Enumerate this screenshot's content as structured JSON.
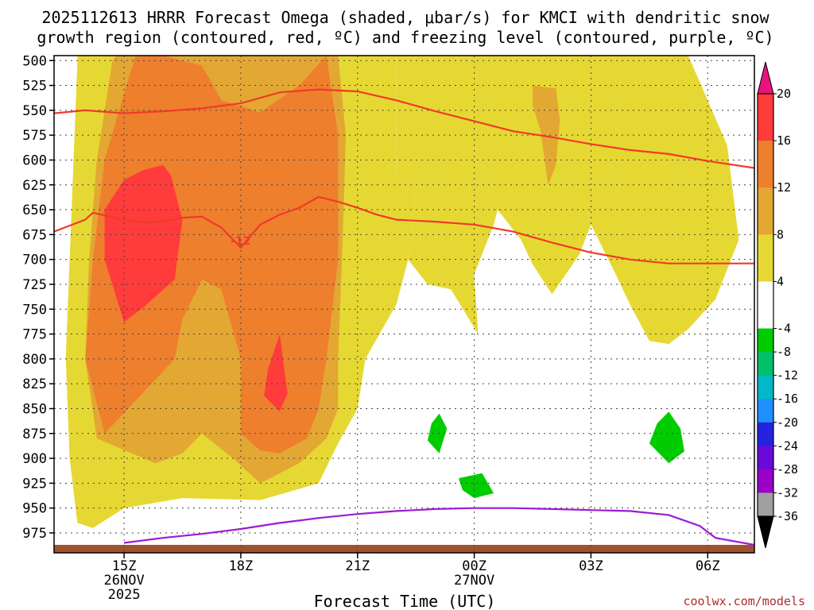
{
  "chart_data": {
    "type": "contour-time-height",
    "title_line1": "2025112613 HRRR Forecast Omega (shaded, μbar/s) for KMCI with dendritic snow",
    "title_line2": "growth region (contoured, red, ºC) and freezing level (contoured, purple, ºC)",
    "xlabel": "Forecast Time (UTC)",
    "credit": "coolwx.com/models",
    "x_range_hours": [
      13.2,
      31.2
    ],
    "y_range_mb": [
      495,
      995
    ],
    "y_ticks": [
      500,
      525,
      550,
      575,
      600,
      625,
      650,
      675,
      700,
      725,
      750,
      775,
      800,
      825,
      850,
      875,
      900,
      925,
      950,
      975
    ],
    "x_ticks": [
      {
        "hour": 15,
        "label": "15Z",
        "date": "26NOV",
        "year": "2025"
      },
      {
        "hour": 18,
        "label": "18Z",
        "date": "",
        "year": ""
      },
      {
        "hour": 21,
        "label": "21Z",
        "date": "",
        "year": ""
      },
      {
        "hour": 24,
        "label": "00Z",
        "date": "27NOV",
        "year": ""
      },
      {
        "hour": 27,
        "label": "03Z",
        "date": "",
        "year": ""
      },
      {
        "hour": 30,
        "label": "06Z",
        "date": "",
        "year": ""
      }
    ],
    "colorbar": {
      "labels": [
        "20",
        "16",
        "12",
        "8",
        "4",
        "-4",
        "-8",
        "-12",
        "-16",
        "-20",
        "-24",
        "-28",
        "-32",
        "-36"
      ],
      "bins": [
        {
          "color": "#ff3b3b"
        },
        {
          "color": "#ff3b3b"
        },
        {
          "color": "#ee7f2d"
        },
        {
          "color": "#ee7f2d"
        },
        {
          "color": "#e3a733"
        },
        {
          "color": "#e3a733"
        },
        {
          "color": "#e6d832"
        },
        {
          "color": "#e6d832"
        },
        {
          "color": "#ffffff"
        },
        {
          "color": "#ffffff"
        },
        {
          "color": "#00cc00"
        },
        {
          "color": "#00c06a"
        },
        {
          "color": "#00b8c8"
        },
        {
          "color": "#1e90ff"
        },
        {
          "color": "#2424e0"
        },
        {
          "color": "#6a0ad8"
        },
        {
          "color": "#9b00c8"
        },
        {
          "color": "#a0a0a0"
        }
      ],
      "top_arrow_color": "#e8137e",
      "bottom_arrow_color": "#000000"
    },
    "omega_regions": [
      {
        "level": 4,
        "color": "#e6d832",
        "points": [
          [
            13.8,
            495
          ],
          [
            22,
            495
          ],
          [
            22,
            615
          ],
          [
            22.5,
            630
          ],
          [
            22.3,
            700
          ],
          [
            22,
            745
          ],
          [
            21.2,
            800
          ],
          [
            21,
            850
          ],
          [
            20.5,
            885
          ],
          [
            20,
            925
          ],
          [
            18.5,
            942
          ],
          [
            16.5,
            940
          ],
          [
            15,
            950
          ],
          [
            14.2,
            970
          ],
          [
            13.8,
            965
          ],
          [
            13.6,
            900
          ],
          [
            13.5,
            800
          ],
          [
            13.6,
            700
          ],
          [
            13.7,
            600
          ],
          [
            13.8,
            500
          ]
        ]
      },
      {
        "level": 4,
        "color": "#e6d832",
        "points": [
          [
            22,
            495
          ],
          [
            29.5,
            495
          ],
          [
            30.5,
            585
          ],
          [
            30.8,
            680
          ],
          [
            30.2,
            740
          ],
          [
            29.5,
            770
          ],
          [
            29,
            785
          ],
          [
            28.5,
            782
          ],
          [
            28,
            745
          ],
          [
            27.6,
            712
          ],
          [
            27,
            665
          ],
          [
            26.7,
            695
          ],
          [
            26,
            735
          ],
          [
            25.5,
            705
          ],
          [
            25.2,
            680
          ],
          [
            24.6,
            650
          ],
          [
            24.5,
            665
          ],
          [
            24,
            715
          ],
          [
            24.1,
            775
          ],
          [
            23.4,
            730
          ],
          [
            22.8,
            725
          ],
          [
            22.3,
            700
          ],
          [
            22.5,
            630
          ],
          [
            22,
            615
          ],
          [
            22,
            495
          ]
        ]
      },
      {
        "level": 8,
        "color": "#e3a733",
        "points": [
          [
            14.8,
            495
          ],
          [
            20.5,
            495
          ],
          [
            20.7,
            575
          ],
          [
            20.6,
            700
          ],
          [
            20.5,
            800
          ],
          [
            20.5,
            850
          ],
          [
            20.2,
            880
          ],
          [
            19.5,
            905
          ],
          [
            18.5,
            925
          ],
          [
            17.8,
            900
          ],
          [
            17,
            875
          ],
          [
            16.5,
            895
          ],
          [
            15.8,
            905
          ],
          [
            14.3,
            880
          ],
          [
            14,
            800
          ],
          [
            14.1,
            700
          ],
          [
            14.3,
            600
          ],
          [
            14.7,
            500
          ]
        ]
      },
      {
        "level": 8,
        "color": "#e3a733",
        "points": [
          [
            25.5,
            525
          ],
          [
            26.1,
            528
          ],
          [
            26.2,
            560
          ],
          [
            26.1,
            605
          ],
          [
            25.9,
            625
          ],
          [
            25.7,
            570
          ],
          [
            25.5,
            545
          ]
        ]
      },
      {
        "level": 12,
        "color": "#ee7f2d",
        "points": [
          [
            15.3,
            495
          ],
          [
            16,
            495
          ],
          [
            17,
            505
          ],
          [
            17.5,
            540
          ],
          [
            18.5,
            552
          ],
          [
            19.5,
            525
          ],
          [
            20.2,
            495
          ],
          [
            20.5,
            575
          ],
          [
            20.5,
            700
          ],
          [
            20.2,
            800
          ],
          [
            20,
            850
          ],
          [
            19.7,
            880
          ],
          [
            19,
            895
          ],
          [
            18.5,
            892
          ],
          [
            18,
            875
          ],
          [
            18,
            800
          ],
          [
            17.5,
            730
          ],
          [
            17,
            720
          ],
          [
            16.5,
            760
          ],
          [
            16.3,
            800
          ],
          [
            15.7,
            825
          ],
          [
            14.5,
            875
          ],
          [
            14,
            800
          ],
          [
            14.2,
            700
          ],
          [
            14.5,
            600
          ],
          [
            15.1,
            520
          ]
        ]
      },
      {
        "level": 16,
        "color": "#ff3b3b",
        "points": [
          [
            15.5,
            610
          ],
          [
            16,
            605
          ],
          [
            16.2,
            615
          ],
          [
            16.5,
            660
          ],
          [
            16.3,
            720
          ],
          [
            15.5,
            748
          ],
          [
            15,
            763
          ],
          [
            14.5,
            700
          ],
          [
            14.5,
            650
          ],
          [
            15,
            620
          ]
        ]
      },
      {
        "level": 16,
        "color": "#ff3b3b",
        "points": [
          [
            19,
            775
          ],
          [
            19.2,
            835
          ],
          [
            19,
            853
          ],
          [
            18.6,
            837
          ],
          [
            18.7,
            810
          ]
        ]
      },
      {
        "level": -4,
        "color": "#00cc00",
        "points": [
          [
            23.1,
            855
          ],
          [
            23.3,
            870
          ],
          [
            23.1,
            895
          ],
          [
            22.8,
            882
          ],
          [
            22.9,
            865
          ]
        ]
      },
      {
        "level": -4,
        "color": "#00cc00",
        "points": [
          [
            23.6,
            920
          ],
          [
            24.2,
            915
          ],
          [
            24.5,
            935
          ],
          [
            24,
            940
          ],
          [
            23.7,
            932
          ]
        ]
      },
      {
        "level": -4,
        "color": "#00cc00",
        "points": [
          [
            29,
            853
          ],
          [
            29.3,
            870
          ],
          [
            29.4,
            893
          ],
          [
            29,
            905
          ],
          [
            28.5,
            885
          ],
          [
            28.7,
            865
          ]
        ]
      }
    ],
    "dgz_line_minus12": {
      "label": "-12",
      "label_hour": 18,
      "label_mb": 681,
      "points": [
        [
          13.2,
          672
        ],
        [
          14,
          660
        ],
        [
          14.2,
          653
        ],
        [
          15,
          660
        ],
        [
          15.5,
          663
        ],
        [
          16,
          662
        ],
        [
          16.5,
          658
        ],
        [
          17,
          657
        ],
        [
          17.5,
          668
        ],
        [
          18,
          688
        ],
        [
          18.5,
          665
        ],
        [
          19,
          655
        ],
        [
          19.5,
          648
        ],
        [
          20,
          637
        ],
        [
          20.5,
          642
        ],
        [
          21,
          648
        ],
        [
          21.5,
          655
        ],
        [
          22,
          660
        ],
        [
          23,
          662
        ],
        [
          24,
          665
        ],
        [
          25,
          672
        ],
        [
          26,
          683
        ],
        [
          27,
          693
        ],
        [
          28,
          700
        ],
        [
          29,
          704
        ],
        [
          30,
          704
        ],
        [
          31.2,
          704
        ]
      ]
    },
    "dgz_line_upper": {
      "points": [
        [
          13.2,
          553
        ],
        [
          14,
          550
        ],
        [
          15,
          553
        ],
        [
          16,
          551
        ],
        [
          17,
          548
        ],
        [
          18,
          543
        ],
        [
          19,
          532
        ],
        [
          20,
          529
        ],
        [
          21,
          531
        ],
        [
          22,
          540
        ],
        [
          23,
          551
        ],
        [
          24,
          561
        ],
        [
          25,
          571
        ],
        [
          26,
          577
        ],
        [
          27,
          584
        ],
        [
          28,
          590
        ],
        [
          29,
          594
        ],
        [
          30,
          601
        ],
        [
          31.2,
          608
        ]
      ]
    },
    "freezing_level": {
      "points": [
        [
          15,
          985
        ],
        [
          16,
          980
        ],
        [
          17,
          976
        ],
        [
          18,
          971
        ],
        [
          19,
          965
        ],
        [
          20,
          960
        ],
        [
          21,
          956
        ],
        [
          22,
          953
        ],
        [
          23,
          951
        ],
        [
          24,
          950
        ],
        [
          25,
          950
        ],
        [
          26,
          951
        ],
        [
          27,
          952
        ],
        [
          28,
          953
        ],
        [
          29,
          957
        ],
        [
          29.8,
          968
        ],
        [
          30.2,
          980
        ],
        [
          31.2,
          987
        ]
      ]
    },
    "ground_bar_mb": [
      987,
      995
    ]
  }
}
